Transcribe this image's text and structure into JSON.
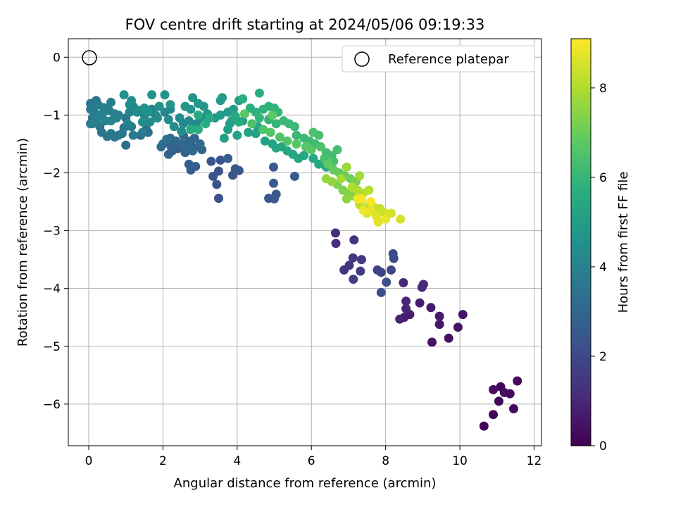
{
  "chart_data": {
    "type": "scatter",
    "title": "FOV centre drift starting at 2024/05/06 09:19:33",
    "xlabel": "Angular distance from reference (arcmin)",
    "ylabel": "Rotation from reference (arcmin)",
    "xlim": [
      -0.55,
      12.2
    ],
    "ylim": [
      -6.72,
      0.32
    ],
    "xticks": [
      "0",
      "2",
      "4",
      "6",
      "8",
      "10",
      "12"
    ],
    "yticks": [
      "0",
      "−1",
      "−2",
      "−3",
      "−4",
      "−5",
      "−6"
    ],
    "grid": true,
    "legend": {
      "position": "top-right",
      "label": "Reference platepar"
    },
    "reference_point": {
      "x": 0,
      "y": 0
    },
    "colorbar": {
      "label": "Hours from first FF file",
      "range": [
        0,
        9.1
      ],
      "ticks": [
        "0",
        "2",
        "4",
        "6",
        "8"
      ],
      "colormap": "viridis"
    },
    "series": [
      {
        "values": [
          [
            10.65,
            -6.38
          ],
          [
            10.9,
            -6.18
          ],
          [
            11.05,
            -5.95
          ],
          [
            11.1,
            -5.7
          ],
          [
            11.35,
            -5.82
          ],
          [
            11.45,
            -6.08
          ],
          [
            11.55,
            -5.6
          ],
          [
            10.9,
            -5.75
          ],
          [
            11.2,
            -5.8
          ],
          [
            9.25,
            -4.93
          ],
          [
            9.7,
            -4.86
          ],
          [
            9.95,
            -4.67
          ],
          [
            10.08,
            -4.45
          ],
          [
            9.45,
            -4.62
          ],
          [
            9.45,
            -4.48
          ],
          [
            9.22,
            -4.33
          ],
          [
            8.92,
            -4.25
          ],
          [
            8.65,
            -4.45
          ],
          [
            8.5,
            -4.5
          ],
          [
            8.38,
            -4.53
          ],
          [
            8.55,
            -4.35
          ],
          [
            8.55,
            -4.22
          ],
          [
            8.48,
            -3.9
          ],
          [
            8.98,
            -3.98
          ],
          [
            9.02,
            -3.93
          ]
        ]
      },
      {
        "values": [
          [
            6.65,
            -3.04
          ],
          [
            6.66,
            -3.22
          ],
          [
            7.15,
            -3.16
          ],
          [
            6.88,
            -3.68
          ],
          [
            7.02,
            -3.6
          ],
          [
            7.12,
            -3.47
          ],
          [
            7.35,
            -3.5
          ],
          [
            7.32,
            -3.7
          ],
          [
            7.13,
            -3.84
          ],
          [
            7.78,
            -3.68
          ],
          [
            7.88,
            -3.72
          ],
          [
            8.15,
            -3.68
          ],
          [
            8.2,
            -3.4
          ],
          [
            8.22,
            -3.48
          ],
          [
            7.88,
            -4.07
          ],
          [
            8.02,
            -3.89
          ]
        ]
      },
      {
        "values": [
          [
            3.5,
            -2.44
          ],
          [
            3.35,
            -2.06
          ],
          [
            3.45,
            -2.2
          ],
          [
            3.5,
            -1.97
          ],
          [
            3.55,
            -1.78
          ],
          [
            3.3,
            -1.8
          ],
          [
            3.88,
            -2.04
          ],
          [
            3.95,
            -1.93
          ],
          [
            4.05,
            -1.96
          ],
          [
            4.85,
            -2.44
          ],
          [
            5.0,
            -2.45
          ],
          [
            5.05,
            -2.37
          ],
          [
            4.98,
            -2.18
          ],
          [
            4.98,
            -1.9
          ],
          [
            5.55,
            -2.06
          ],
          [
            3.75,
            -1.75
          ],
          [
            2.7,
            -1.85
          ],
          [
            2.75,
            -1.95
          ],
          [
            2.88,
            -1.89
          ],
          [
            2.6,
            -1.65
          ],
          [
            2.4,
            -1.58
          ],
          [
            2.25,
            -1.62
          ],
          [
            2.15,
            -1.68
          ],
          [
            2.22,
            -1.55
          ],
          [
            2.5,
            -1.5
          ],
          [
            2.75,
            -1.52
          ],
          [
            2.95,
            -1.55
          ],
          [
            3.05,
            -1.6
          ],
          [
            2.85,
            -1.4
          ],
          [
            2.7,
            -1.45
          ],
          [
            2.2,
            -1.4
          ],
          [
            2.35,
            -1.45
          ],
          [
            2.55,
            -1.35
          ],
          [
            2.6,
            -1.55
          ],
          [
            2.8,
            -1.62
          ],
          [
            3.0,
            -1.5
          ],
          [
            2.0,
            -1.5
          ],
          [
            1.95,
            -1.55
          ],
          [
            1.0,
            -1.52
          ],
          [
            1.55,
            -1.25
          ],
          [
            1.4,
            -1.35
          ],
          [
            1.6,
            -1.3
          ],
          [
            2.1,
            -1.42
          ]
        ]
      },
      {
        "values": [
          [
            0.05,
            -0.8
          ],
          [
            0.2,
            -0.75
          ],
          [
            0.05,
            -1.15
          ],
          [
            0.1,
            -1.05
          ],
          [
            0.15,
            -0.95
          ],
          [
            0.3,
            -1.2
          ],
          [
            0.35,
            -1.3
          ],
          [
            0.5,
            -1.37
          ],
          [
            0.6,
            -1.32
          ],
          [
            0.7,
            -1.38
          ],
          [
            0.8,
            -1.35
          ],
          [
            0.95,
            -1.22
          ],
          [
            1.0,
            -1.05
          ],
          [
            0.9,
            -1.32
          ],
          [
            1.15,
            -1.2
          ],
          [
            1.2,
            -1.35
          ],
          [
            1.45,
            -1.3
          ],
          [
            0.05,
            -0.9
          ],
          [
            0.15,
            -0.98
          ],
          [
            0.25,
            -0.82
          ],
          [
            0.4,
            -0.87
          ],
          [
            0.6,
            -0.78
          ],
          [
            0.55,
            -0.92
          ],
          [
            0.7,
            -0.98
          ],
          [
            0.8,
            -1.0
          ],
          [
            0.3,
            -1.0
          ],
          [
            0.45,
            -1.1
          ],
          [
            0.1,
            -1.15
          ],
          [
            0.2,
            -1.1
          ],
          [
            0.4,
            -0.95
          ],
          [
            0.6,
            -1.1
          ],
          [
            0.75,
            -1.05
          ],
          [
            1.05,
            -1.15
          ],
          [
            1.1,
            -0.95
          ],
          [
            1.2,
            -0.85
          ],
          [
            1.35,
            -0.92
          ],
          [
            1.5,
            -1.0
          ],
          [
            1.7,
            -0.9
          ],
          [
            1.8,
            -1.0
          ],
          [
            1.9,
            -0.85
          ],
          [
            2.05,
            -0.95
          ],
          [
            2.2,
            -0.9
          ],
          [
            2.45,
            -1.05
          ],
          [
            2.55,
            -1.15
          ],
          [
            2.7,
            -1.1
          ],
          [
            2.9,
            -1.15
          ],
          [
            3.05,
            -1.05
          ],
          [
            2.3,
            -1.2
          ],
          [
            2.5,
            -1.28
          ],
          [
            2.15,
            -1.08
          ],
          [
            1.85,
            -1.05
          ],
          [
            1.65,
            -1.12
          ],
          [
            1.45,
            -1.12
          ],
          [
            1.3,
            -0.95
          ],
          [
            1.1,
            -0.82
          ],
          [
            1.15,
            -0.75
          ]
        ]
      },
      {
        "values": [
          [
            0.95,
            -0.65
          ],
          [
            1.7,
            -0.65
          ],
          [
            1.9,
            -0.85
          ],
          [
            1.5,
            -0.88
          ],
          [
            1.6,
            -0.95
          ],
          [
            2.05,
            -0.65
          ],
          [
            2.2,
            -0.82
          ],
          [
            2.6,
            -0.85
          ],
          [
            2.75,
            -0.9
          ],
          [
            2.8,
            -0.7
          ],
          [
            2.95,
            -0.8
          ],
          [
            3.1,
            -0.85
          ],
          [
            3.2,
            -0.98
          ],
          [
            3.4,
            -1.05
          ],
          [
            3.55,
            -1.0
          ],
          [
            3.6,
            -0.7
          ],
          [
            3.55,
            -0.75
          ],
          [
            3.75,
            -0.95
          ],
          [
            3.9,
            -0.9
          ],
          [
            4.05,
            -0.75
          ],
          [
            4.15,
            -1.1
          ],
          [
            3.85,
            -1.1
          ],
          [
            3.65,
            -1.4
          ],
          [
            3.75,
            -1.25
          ],
          [
            3.8,
            -1.15
          ],
          [
            4.0,
            -1.35
          ],
          [
            4.3,
            -1.3
          ],
          [
            4.5,
            -1.32
          ],
          [
            4.55,
            -1.2
          ],
          [
            4.75,
            -1.45
          ],
          [
            4.95,
            -1.5
          ],
          [
            5.05,
            -1.57
          ],
          [
            5.2,
            -1.55
          ],
          [
            5.35,
            -1.62
          ],
          [
            5.5,
            -1.68
          ],
          [
            5.65,
            -1.75
          ],
          [
            5.8,
            -1.7
          ],
          [
            6.05,
            -1.75
          ],
          [
            6.2,
            -1.85
          ],
          [
            6.4,
            -1.9
          ],
          [
            3.95,
            -1.02
          ],
          [
            4.05,
            -1.12
          ],
          [
            2.95,
            -1.0
          ],
          [
            3.25,
            -1.05
          ],
          [
            3.15,
            -1.15
          ],
          [
            2.75,
            -1.25
          ],
          [
            2.95,
            -1.25
          ]
        ]
      },
      {
        "values": [
          [
            4.6,
            -0.62
          ],
          [
            4.15,
            -0.72
          ],
          [
            4.35,
            -0.88
          ],
          [
            4.5,
            -0.95
          ],
          [
            4.7,
            -0.9
          ],
          [
            4.85,
            -0.85
          ],
          [
            5.0,
            -0.88
          ],
          [
            5.1,
            -0.95
          ],
          [
            4.6,
            -1.05
          ],
          [
            4.85,
            -1.08
          ],
          [
            5.05,
            -1.15
          ],
          [
            5.25,
            -1.1
          ],
          [
            5.4,
            -1.15
          ],
          [
            5.55,
            -1.2
          ],
          [
            5.6,
            -1.35
          ],
          [
            5.8,
            -1.4
          ],
          [
            5.95,
            -1.45
          ],
          [
            6.1,
            -1.5
          ],
          [
            6.25,
            -1.55
          ],
          [
            6.4,
            -1.65
          ],
          [
            6.55,
            -1.7
          ],
          [
            6.7,
            -1.6
          ],
          [
            6.6,
            -1.8
          ],
          [
            6.35,
            -1.75
          ],
          [
            6.2,
            -1.35
          ],
          [
            6.05,
            -1.3
          ],
          [
            6.25,
            -1.55
          ],
          [
            4.4,
            -1.15
          ],
          [
            4.7,
            -1.25
          ],
          [
            4.9,
            -1.3
          ],
          [
            5.15,
            -1.38
          ],
          [
            5.35,
            -1.45
          ],
          [
            5.6,
            -1.5
          ],
          [
            5.85,
            -1.55
          ],
          [
            6.0,
            -1.6
          ],
          [
            4.2,
            -0.98
          ],
          [
            4.95,
            -1.0
          ]
        ]
      },
      {
        "values": [
          [
            6.45,
            -1.85
          ],
          [
            6.6,
            -1.95
          ],
          [
            6.75,
            -2.0
          ],
          [
            6.9,
            -2.05
          ],
          [
            7.05,
            -2.1
          ],
          [
            7.2,
            -2.15
          ],
          [
            6.7,
            -2.2
          ],
          [
            6.85,
            -2.3
          ],
          [
            7.0,
            -2.35
          ],
          [
            7.15,
            -2.4
          ],
          [
            6.95,
            -2.45
          ],
          [
            6.55,
            -2.15
          ],
          [
            6.4,
            -2.1
          ],
          [
            6.95,
            -1.9
          ],
          [
            7.3,
            -2.05
          ],
          [
            6.8,
            -2.1
          ],
          [
            7.1,
            -2.25
          ]
        ]
      },
      {
        "values": [
          [
            7.1,
            -2.25
          ],
          [
            7.25,
            -2.3
          ],
          [
            7.4,
            -2.35
          ],
          [
            7.55,
            -2.3
          ],
          [
            7.3,
            -2.55
          ],
          [
            7.55,
            -2.55
          ],
          [
            7.7,
            -2.6
          ],
          [
            7.85,
            -2.62
          ],
          [
            7.95,
            -2.68
          ],
          [
            8.05,
            -2.72
          ],
          [
            8.15,
            -2.7
          ],
          [
            8.4,
            -2.8
          ],
          [
            7.5,
            -2.7
          ],
          [
            7.75,
            -2.75
          ],
          [
            7.8,
            -2.85
          ],
          [
            8.0,
            -2.8
          ],
          [
            7.6,
            -2.65
          ],
          [
            7.4,
            -2.65
          ],
          [
            7.25,
            -2.45
          ],
          [
            7.35,
            -2.45
          ],
          [
            7.6,
            -2.5
          ]
        ]
      }
    ]
  }
}
